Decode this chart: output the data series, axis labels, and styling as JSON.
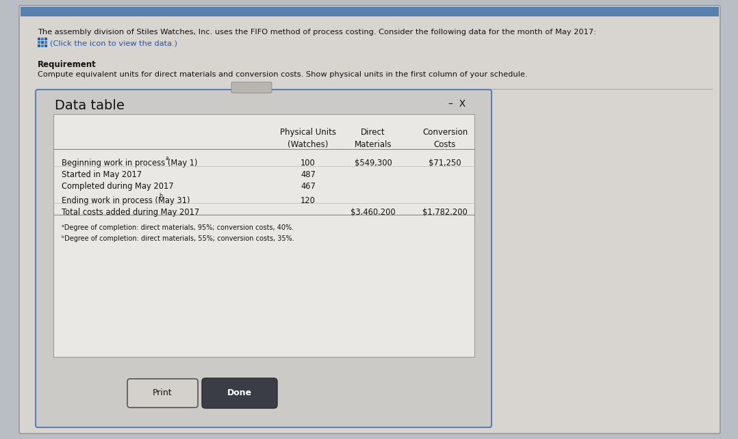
{
  "bg_color": "#b8bec4",
  "card_bg": "#d8d5d0",
  "header_text": "The assembly division of Stiles Watches, Inc. uses the FIFO method of process costing. Consider the following data for the month of May 2017:",
  "click_text": "(Click the icon to view the data.)",
  "requirement_label": "Requirement",
  "requirement_text": "Compute equivalent units for direct materials and conversion costs. Show physical units in the first column of your schedule.",
  "data_table_title": "Data table",
  "minus_x": "–  X",
  "col_headers_row1": [
    "Physical Units",
    "Direct",
    "Conversion"
  ],
  "col_headers_row2": [
    "(Watches)",
    "Materials",
    "Costs"
  ],
  "rows": [
    {
      "label": "Beginning work in process (May 1)",
      "superscript": "a",
      "physical": "100",
      "direct": "$549,300",
      "conversion": "$71,250"
    },
    {
      "label": "Started in May 2017",
      "superscript": "",
      "physical": "487",
      "direct": "",
      "conversion": ""
    },
    {
      "label": "Completed during May 2017",
      "superscript": "",
      "physical": "467",
      "direct": "",
      "conversion": ""
    },
    {
      "label": "Ending work in process (May 31)",
      "superscript": "b",
      "physical": "120",
      "direct": "",
      "conversion": ""
    },
    {
      "label": "Total costs added during May 2017",
      "superscript": "",
      "physical": "",
      "direct": "$3,460,200",
      "conversion": "$1,782,200"
    }
  ],
  "footnote_a": "ᵃDegree of completion: direct materials, 95%; conversion costs, 40%.",
  "footnote_b": "ᵇDegree of completion: direct materials, 55%; conversion costs, 35%.",
  "print_btn": "Print",
  "done_btn": "Done",
  "inner_panel_bg": "#cdd0d4",
  "dialog_bg": "#d4d0cc",
  "table_bg": "#eae8e4",
  "top_bar_color": "#5580b0"
}
